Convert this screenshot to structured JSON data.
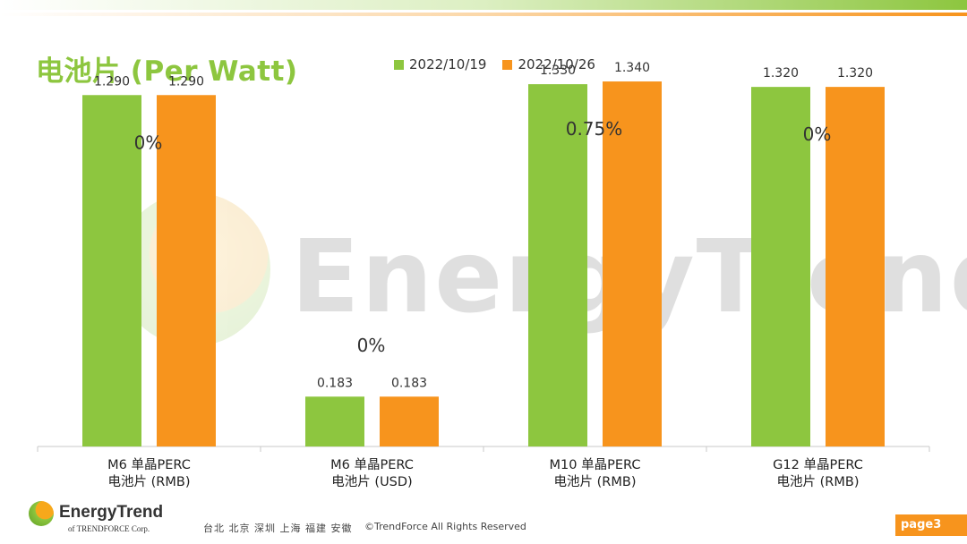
{
  "title": "电池片 (Per Watt)",
  "colors": {
    "series1": "#8DC63F",
    "series2": "#F7941D",
    "accent": "#8DC63F"
  },
  "chart_data": {
    "type": "bar",
    "categories": [
      [
        "M6 单晶PERC",
        "电池片 (RMB)"
      ],
      [
        "M6 单晶PERC",
        "电池片 (USD)"
      ],
      [
        "M10 单晶PERC",
        "电池片 (RMB)"
      ],
      [
        "G12 单晶PERC",
        "电池片 (RMB)"
      ]
    ],
    "series": [
      {
        "name": "2022/10/19",
        "values": [
          1.29,
          0.183,
          1.33,
          1.32
        ],
        "labels": [
          "1.290",
          "0.183",
          "1.330",
          "1.320"
        ]
      },
      {
        "name": "2022/10/26",
        "values": [
          1.29,
          0.183,
          1.34,
          1.32
        ],
        "labels": [
          "1.290",
          "0.183",
          "1.340",
          "1.320"
        ]
      }
    ],
    "change_labels": [
      "0%",
      "0%",
      "0.75%",
      "0%"
    ],
    "ylim": [
      0,
      1.35
    ],
    "legend_position": "top",
    "grid": false
  },
  "watermark": {
    "text": "EnergyTrend"
  },
  "footer": {
    "logo_text": "EnergyTrend",
    "logo_sub": "of TRENDFORCE Corp.",
    "cities": "台北 北京 深圳 上海 福建 安徽",
    "copyright": "©TrendForce All Rights Reserved",
    "page": "page3"
  }
}
